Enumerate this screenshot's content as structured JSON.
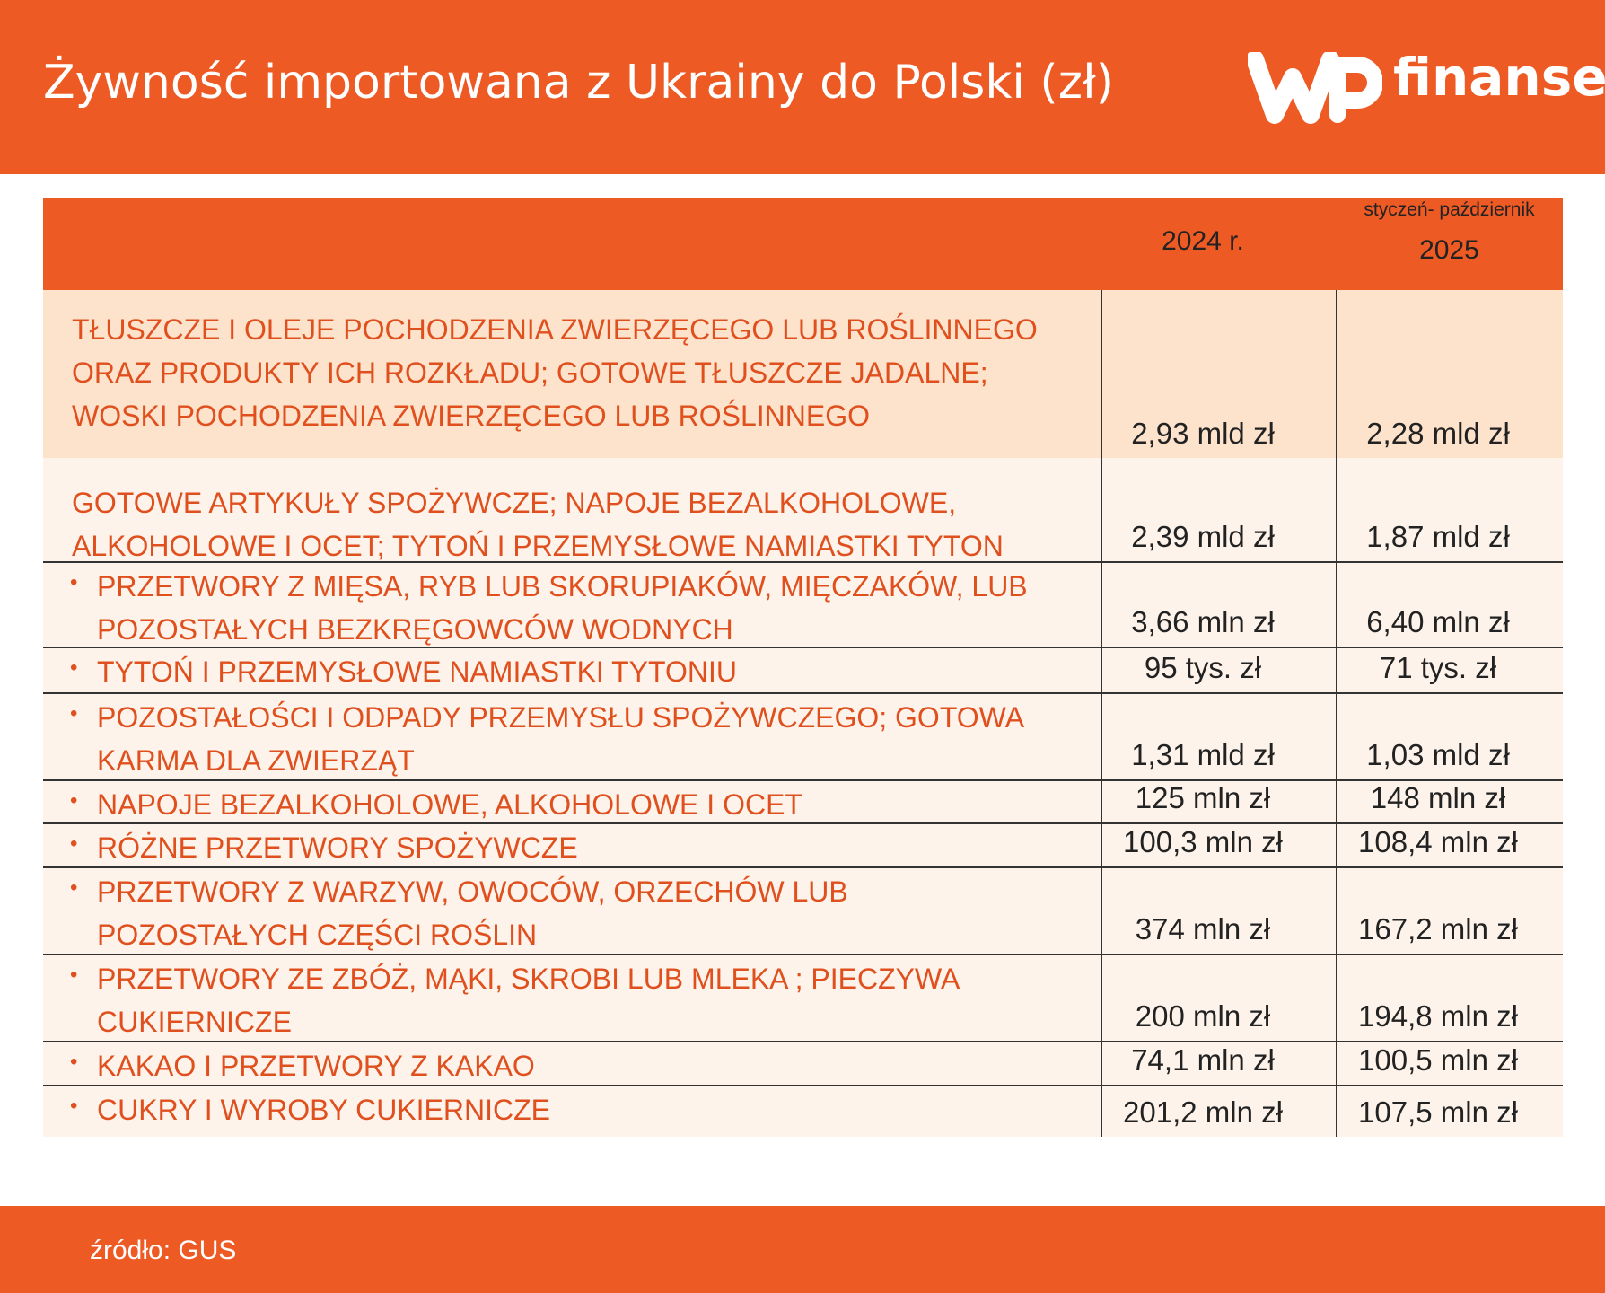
{
  "header": {
    "title": "Żywność importowana z Ukrainy do Polski (zł)",
    "brand": "finanse"
  },
  "table": {
    "columns": [
      "2024 r.",
      {
        "note": "styczeń- październik",
        "label": "2025"
      }
    ],
    "rows": [
      {
        "label": [
          "TŁUSZCZE I OLEJE POCHODZENIA ZWIERZĘCEGO LUB ROŚLINNEGO",
          "ORAZ PRODUKTY ICH ROZKŁADU; GOTOWE TŁUSZCZE JADALNE;",
          "WOSKI POCHODZENIA ZWIERZĘCEGO LUB ROŚLINNEGO"
        ],
        "values": [
          "2,93 mld zł",
          "2,28 mld zł"
        ]
      },
      {
        "label": [
          "GOTOWE ARTYKUŁY SPOŻYWCZE; NAPOJE BEZALKOHOLOWE,",
          "ALKOHOLOWE I OCET; TYTOŃ I PRZEMYSŁOWE NAMIASTKI TYTON"
        ],
        "values": [
          "2,39 mld zł",
          "1,87 mld zł"
        ]
      },
      {
        "label": [
          "PRZETWORY Z MIĘSA, RYB LUB SKORUPIAKÓW, MIĘCZAKÓW, LUB",
          "POZOSTAŁYCH BEZKRĘGOWCÓW WODNYCH"
        ],
        "values": [
          "3,66 mln zł",
          "6,40 mln zł"
        ]
      },
      {
        "label": [
          "TYTOŃ I PRZEMYSŁOWE NAMIASTKI TYTONIU"
        ],
        "values": [
          "95 tys. zł",
          "71 tys. zł"
        ]
      },
      {
        "label": [
          "POZOSTAŁOŚCI I ODPADY PRZEMYSŁU SPOŻYWCZEGO; GOTOWA",
          "KARMA DLA ZWIERZĄT"
        ],
        "values": [
          "1,31 mld zł",
          "1,03 mld zł"
        ]
      },
      {
        "label": [
          "NAPOJE BEZALKOHOLOWE, ALKOHOLOWE I OCET"
        ],
        "values": [
          "125 mln zł",
          "148 mln zł"
        ]
      },
      {
        "label": [
          "RÓŻNE PRZETWORY SPOŻYWCZE"
        ],
        "values": [
          "100,3 mln zł",
          "108,4 mln zł"
        ]
      },
      {
        "label": [
          "PRZETWORY Z WARZYW, OWOCÓW, ORZECHÓW LUB",
          "POZOSTAŁYCH CZĘŚCI ROŚLIN"
        ],
        "values": [
          "374 mln zł",
          "167,2 mln zł"
        ]
      },
      {
        "label": [
          "PRZETWORY ZE ZBÓŻ, MĄKI, SKROBI LUB MLEKA ; PIECZYWA",
          "CUKIERNICZE"
        ],
        "values": [
          "200 mln zł",
          "194,8 mln zł"
        ]
      },
      {
        "label": [
          "KAKAO I PRZETWORY Z KAKAO"
        ],
        "values": [
          "74,1 mln zł",
          "100,5 mln zł"
        ]
      },
      {
        "label": [
          "CUKRY I WYROBY CUKIERNICZE"
        ],
        "values": [
          "201,2 mln zł",
          "107,5 mln zł"
        ]
      }
    ]
  },
  "footer": {
    "source": "źródło: GUS"
  }
}
